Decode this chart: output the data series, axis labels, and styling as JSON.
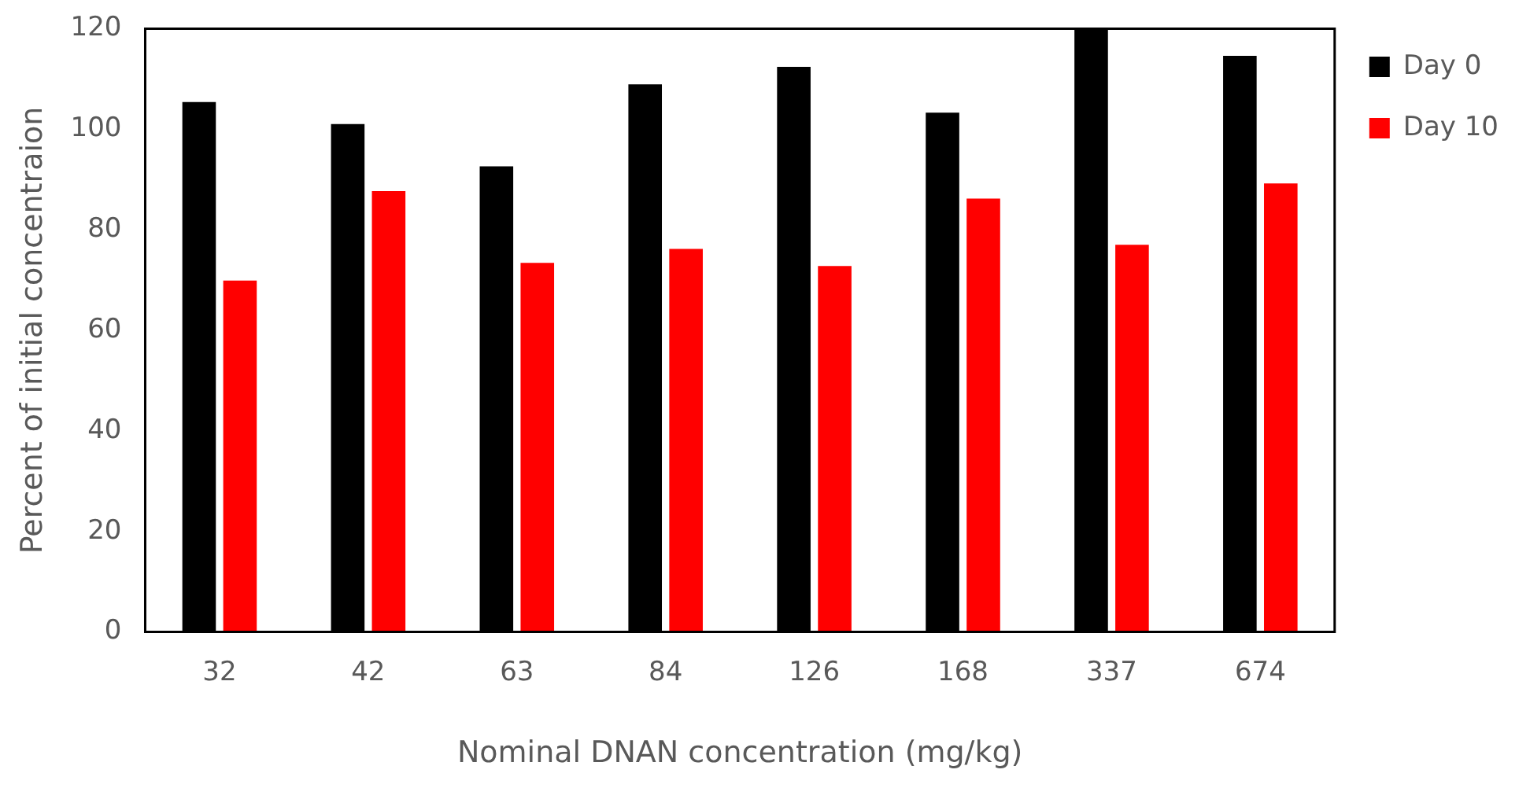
{
  "chart_data": {
    "type": "bar",
    "xlabel": "Nominal DNAN concentration (mg/kg)",
    "ylabel": "Percent of initial concentraion",
    "categories": [
      "32",
      "42",
      "63",
      "84",
      "126",
      "168",
      "337",
      "674"
    ],
    "series": [
      {
        "name": "Day 0",
        "color": "#000000",
        "values": [
          105.4,
          101,
          92.6,
          108.9,
          112.4,
          103.3,
          120,
          114.6
        ]
      },
      {
        "name": "Day 10",
        "color": "#ff0000",
        "values": [
          69.9,
          87.7,
          73.4,
          76.2,
          72.8,
          86.2,
          77,
          89.2
        ]
      }
    ],
    "ylim": [
      0,
      120
    ],
    "yticks": [
      0,
      20,
      40,
      60,
      80,
      100,
      120
    ],
    "grid": false,
    "legend": "top right"
  }
}
